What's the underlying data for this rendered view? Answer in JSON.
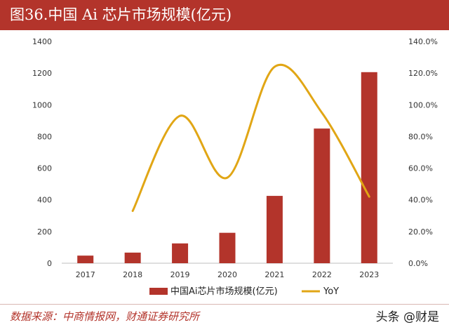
{
  "title": "图36.中国 Ai 芯片市场规模(亿元)",
  "source_text": "数据来源：中商情报网，财通证券研究所",
  "watermark": "头条 @财是",
  "colors": {
    "header": "#b3342b",
    "bar": "#b3342b",
    "line": "#e1a615",
    "axis_text": "#333333",
    "source_text": "#b3342b"
  },
  "chart_data": {
    "type": "bar",
    "title": "图36.中国 Ai 芯片市场规模(亿元)",
    "categories": [
      "2017",
      "2018",
      "2019",
      "2020",
      "2021",
      "2022",
      "2023"
    ],
    "y_left": {
      "ylim": [
        0,
        1400
      ],
      "ticks": [
        "0",
        "200",
        "400",
        "600",
        "800",
        "1000",
        "1200",
        "1400"
      ],
      "tick_values": [
        0,
        200,
        400,
        600,
        800,
        1000,
        1200,
        1400
      ]
    },
    "y_right": {
      "ylim": [
        0,
        140
      ],
      "ticks": [
        "0.0%",
        "20.0%",
        "40.0%",
        "60.0%",
        "80.0%",
        "100.0%",
        "120.0%",
        "140.0%"
      ],
      "tick_values": [
        0,
        20,
        40,
        60,
        80,
        100,
        120,
        140
      ]
    },
    "series": [
      {
        "name": "中国Ai芯片市场规模(亿元)",
        "type": "bar",
        "axis": "left",
        "values": [
          48,
          67,
          125,
          192,
          425,
          850,
          1206
        ]
      },
      {
        "name": "YoY",
        "type": "line",
        "axis": "right",
        "smooth": true,
        "x": [
          "2018",
          "2019",
          "2020",
          "2021",
          "2022",
          "2023"
        ],
        "values": [
          33,
          93,
          54,
          124,
          95,
          42
        ]
      }
    ],
    "grid": false,
    "legend": "bottom"
  }
}
